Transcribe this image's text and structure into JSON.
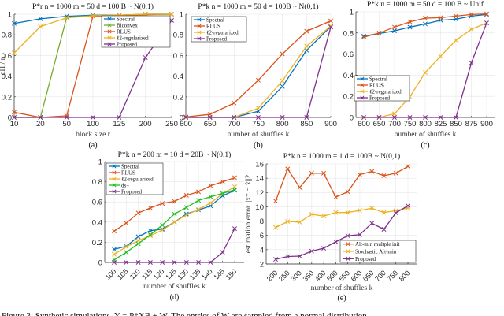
{
  "figure": {
    "caption": "Figure 3: Synthetic simulations. Y = P*XB + W. The entries of W are sampled from a normal distribution"
  },
  "chart_data": [
    {
      "id": "a",
      "type": "line",
      "panel_label": "(a)",
      "title": "P*r n = 1000 m = 50 d = 100 B ~ N(0,1)",
      "xlabel": "block size r",
      "ylabel": "dH / n",
      "x_scale": "categorical",
      "categories": [
        "10",
        "20",
        "50",
        "100",
        "125",
        "200",
        "250"
      ],
      "ylim": [
        0,
        1
      ],
      "yticks": [
        0,
        0.2,
        0.4,
        0.6,
        0.8,
        1
      ],
      "ytick_labels": [
        "0",
        "0.2",
        "0.4",
        "0.6",
        "0.8",
        "1"
      ],
      "grid": true,
      "legend": "top-right",
      "series": [
        {
          "name": "Spectral",
          "color": "#0072BD",
          "values": [
            0.91,
            0.955,
            0.98,
            0.99,
            0.99,
            1.0,
            1.0
          ]
        },
        {
          "name": "Biconvex",
          "color": "#77AC30",
          "values": [
            0,
            0,
            0.97,
            0.985,
            0.99,
            1.0,
            1.0
          ]
        },
        {
          "name": "RLUS",
          "color": "#D95319",
          "values": [
            0.05,
            0,
            0.015,
            0.98,
            0.985,
            0.995,
            1.0
          ]
        },
        {
          "name": "ℓ2-regularized",
          "color": "#EDB120",
          "values": [
            0.625,
            0.88,
            0.965,
            0.985,
            0.99,
            1.0,
            1.0
          ]
        },
        {
          "name": "Proposed",
          "color": "#7E2F8E",
          "values": [
            0,
            0,
            0,
            0,
            0,
            0.58,
            0.94
          ]
        }
      ]
    },
    {
      "id": "b",
      "type": "line",
      "panel_label": "(b)",
      "title": "P*k n = 1000 m = 50 d = 100B ~ N(0,1)",
      "xlabel": "number of shuffles k",
      "ylabel": "",
      "x_scale": "categorical",
      "categories": [
        "600",
        "650",
        "700",
        "750",
        "800",
        "850",
        "900"
      ],
      "ylim": [
        0,
        1
      ],
      "yticks": [
        0,
        0.2,
        0.4,
        0.6,
        0.8,
        1
      ],
      "ytick_labels": [
        "0",
        "0.2",
        "0.4",
        "0.6",
        "0.8",
        "1"
      ],
      "grid": true,
      "legend": "top-left",
      "series": [
        {
          "name": "Spectral",
          "color": "#0072BD",
          "values": [
            0,
            0,
            0,
            0.06,
            0.3,
            0.65,
            0.88
          ]
        },
        {
          "name": "RLUS",
          "color": "#D95319",
          "values": [
            0.005,
            0.03,
            0.14,
            0.36,
            0.615,
            0.835,
            0.935
          ]
        },
        {
          "name": "ℓ2-regularized",
          "color": "#EDB120",
          "values": [
            0,
            0,
            0,
            0.09,
            0.355,
            0.69,
            0.885
          ]
        },
        {
          "name": "Proposed",
          "color": "#7E2F8E",
          "values": [
            0,
            0,
            0,
            0,
            0,
            0,
            0.875
          ]
        }
      ]
    },
    {
      "id": "c",
      "type": "line",
      "panel_label": "(c)",
      "title": "P*k n = 1000 m = 50 d = 100 B ~ Unif",
      "xlabel": "number of shuffles k",
      "ylabel": "",
      "x_scale": "categorical",
      "categories": [
        "600",
        "650",
        "700",
        "750",
        "800",
        "825",
        "850",
        "875",
        "900"
      ],
      "ylim": [
        0,
        1
      ],
      "yticks": [
        0,
        0.2,
        0.4,
        0.6,
        0.8,
        1
      ],
      "ytick_labels": [
        "0",
        "0.2",
        "0.4",
        "0.6",
        "0.8",
        "1"
      ],
      "grid": true,
      "legend": "bottom-left",
      "series": [
        {
          "name": "Spectral",
          "color": "#0072BD",
          "values": [
            0.77,
            0.795,
            0.82,
            0.855,
            0.885,
            0.92,
            0.93,
            0.96,
            0.975
          ]
        },
        {
          "name": "RLUS",
          "color": "#D95319",
          "values": [
            0.76,
            0.8,
            0.855,
            0.905,
            0.94,
            0.945,
            0.96,
            0.975,
            0.98
          ]
        },
        {
          "name": "ℓ2-regularized",
          "color": "#EDB120",
          "values": [
            0,
            0,
            0.035,
            0.195,
            0.425,
            0.58,
            0.73,
            0.835,
            0.895
          ]
        },
        {
          "name": "Proposed",
          "color": "#7E2F8E",
          "values": [
            0,
            0,
            0,
            0,
            0,
            0,
            0,
            0.515,
            0.895
          ]
        }
      ]
    },
    {
      "id": "d",
      "type": "line",
      "panel_label": "(d)",
      "title": "P*k n = 200 m = 10 d = 20B ~ N(0,1)",
      "xlabel": "number of shuffles k",
      "ylabel": "",
      "x_scale": "categorical",
      "xtick_rotation": "45",
      "categories": [
        "100",
        "105",
        "110",
        "115",
        "120",
        "125",
        "130",
        "135",
        "140",
        "145",
        "150"
      ],
      "ylim": [
        0,
        1
      ],
      "yticks": [
        0,
        0.2,
        0.4,
        0.6,
        0.8,
        1
      ],
      "ytick_labels": [
        "0",
        "0.2",
        "0.4",
        "0.6",
        "0.8",
        "1"
      ],
      "grid": true,
      "legend": "top-left",
      "series": [
        {
          "name": "Spectral",
          "color": "#0072BD",
          "values": [
            0.13,
            0.16,
            0.255,
            0.315,
            0.33,
            0.4,
            0.48,
            0.52,
            0.56,
            0.66,
            0.715
          ]
        },
        {
          "name": "RLUS",
          "color": "#D95319",
          "values": [
            0.31,
            0.39,
            0.49,
            0.54,
            0.585,
            0.605,
            0.665,
            0.7,
            0.76,
            0.8,
            0.84
          ]
        },
        {
          "name": "ℓ2-regularized",
          "color": "#EDB120",
          "values": [
            0.08,
            0.155,
            0.215,
            0.265,
            0.32,
            0.4,
            0.47,
            0.525,
            0.59,
            0.68,
            0.75
          ]
        },
        {
          "name": "ds+",
          "color": "#1EBE1E",
          "values": [
            0.025,
            0.1,
            0.185,
            0.275,
            0.37,
            0.48,
            0.545,
            0.615,
            0.65,
            0.685,
            0.72
          ]
        },
        {
          "name": "Proposed",
          "color": "#7E2F8E",
          "values": [
            0,
            0,
            0,
            0,
            0,
            0,
            0,
            0,
            0,
            0.1,
            0.335
          ]
        }
      ]
    },
    {
      "id": "e",
      "type": "line",
      "panel_label": "(e)",
      "title": "P*k n = 1000 m = 1 d = 100B ~ N(0,1)",
      "xlabel": "number of shuffles k",
      "ylabel": "estimation error ||x* − x̂||2",
      "x_scale": "categorical",
      "xtick_rotation": "45",
      "categories": [
        "200",
        "250",
        "300",
        "350",
        "400",
        "500",
        "550",
        "600",
        "650",
        "700",
        "750",
        "800"
      ],
      "ylim": [
        2,
        16
      ],
      "yticks": [
        2,
        4,
        6,
        8,
        10,
        12,
        14,
        16
      ],
      "ytick_labels": [
        "2",
        "4",
        "6",
        "8",
        "10",
        "12",
        "14",
        "16"
      ],
      "grid": true,
      "legend": "bottom-right",
      "series": [
        {
          "name": "Alt-min multple init",
          "color": "#D95319",
          "values": [
            10.8,
            15.3,
            12.7,
            14.7,
            14.7,
            11.35,
            12.1,
            14.5,
            14.95,
            14.35,
            14.7,
            15.65
          ]
        },
        {
          "name": "Stochastic Alt-min",
          "color": "#EDB120",
          "values": [
            7.1,
            7.95,
            7.85,
            8.95,
            8.7,
            9.2,
            9.2,
            9.5,
            9.8,
            9.2,
            9.45,
            9.85
          ]
        },
        {
          "name": "Proposed",
          "color": "#7E2F8E",
          "values": [
            2.65,
            3.05,
            3.1,
            3.8,
            4.2,
            5.1,
            5.95,
            6.1,
            7.7,
            6.85,
            9.15,
            10.15
          ]
        }
      ]
    }
  ]
}
